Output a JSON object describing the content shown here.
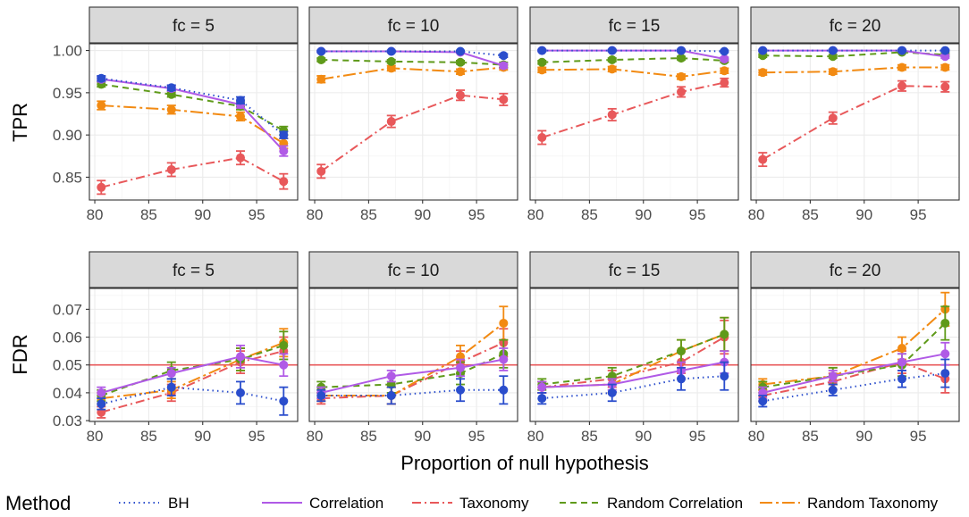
{
  "chart_data": {
    "type": "line",
    "x_axis_label": "Proportion of null hypothesis",
    "x_ticks": [
      80,
      85,
      90,
      95
    ],
    "xlim": [
      79.5,
      98.8
    ],
    "x": [
      80.6,
      87.1,
      93.5,
      97.5
    ],
    "facets": [
      "fc = 5",
      "fc = 10",
      "fc = 15",
      "fc = 20"
    ],
    "legend": {
      "title": "Method",
      "entries": [
        {
          "name": "BH",
          "color": "#2a4dcc",
          "dash": "1.5 4"
        },
        {
          "name": "Correlation",
          "color": "#b05ae6",
          "dash": ""
        },
        {
          "name": "Taxonomy",
          "color": "#e8585a",
          "dash": "10 4 2 4"
        },
        {
          "name": "Random Correlation",
          "color": "#5f9a1a",
          "dash": "7 5"
        },
        {
          "name": "Random Taxonomy",
          "color": "#f28a12",
          "dash": "14 4 3 4"
        }
      ]
    },
    "rows": [
      {
        "metric": "TPR",
        "ylim": [
          0.823,
          1.008
        ],
        "y_ticks": [
          0.85,
          0.9,
          0.95,
          1.0
        ],
        "y_tick_labels": [
          "0.85",
          "0.90",
          "0.95",
          "1.00"
        ],
        "reference_line": null,
        "panels": [
          {
            "facet": "fc = 5",
            "series": [
              {
                "name": "BH",
                "values": [
                  0.967,
                  0.956,
                  0.941,
                  0.9
                ],
                "err": [
                  0.003,
                  0.003,
                  0.004,
                  0.004
                ]
              },
              {
                "name": "Correlation",
                "values": [
                  0.966,
                  0.955,
                  0.936,
                  0.881
                ],
                "err": [
                  0.003,
                  0.003,
                  0.004,
                  0.006
                ]
              },
              {
                "name": "Taxonomy",
                "values": [
                  0.838,
                  0.859,
                  0.873,
                  0.845
                ],
                "err": [
                  0.008,
                  0.008,
                  0.008,
                  0.009
                ]
              },
              {
                "name": "Random Correlation",
                "values": [
                  0.96,
                  0.948,
                  0.934,
                  0.905
                ],
                "err": [
                  0.003,
                  0.003,
                  0.004,
                  0.005
                ]
              },
              {
                "name": "Random Taxonomy",
                "values": [
                  0.935,
                  0.93,
                  0.922,
                  0.89
                ],
                "err": [
                  0.005,
                  0.005,
                  0.005,
                  0.006
                ]
              }
            ]
          },
          {
            "facet": "fc = 10",
            "series": [
              {
                "name": "BH",
                "values": [
                  0.999,
                  0.999,
                  0.999,
                  0.994
                ],
                "err": [
                  0.001,
                  0.001,
                  0.001,
                  0.002
                ]
              },
              {
                "name": "Correlation",
                "values": [
                  0.999,
                  0.999,
                  0.998,
                  0.982
                ],
                "err": [
                  0.001,
                  0.001,
                  0.001,
                  0.003
                ]
              },
              {
                "name": "Taxonomy",
                "values": [
                  0.857,
                  0.916,
                  0.947,
                  0.942
                ],
                "err": [
                  0.008,
                  0.007,
                  0.006,
                  0.007
                ]
              },
              {
                "name": "Random Correlation",
                "values": [
                  0.989,
                  0.987,
                  0.986,
                  0.983
                ],
                "err": [
                  0.002,
                  0.002,
                  0.002,
                  0.003
                ]
              },
              {
                "name": "Random Taxonomy",
                "values": [
                  0.966,
                  0.979,
                  0.975,
                  0.98
                ],
                "err": [
                  0.004,
                  0.003,
                  0.003,
                  0.003
                ]
              }
            ]
          },
          {
            "facet": "fc = 15",
            "series": [
              {
                "name": "BH",
                "values": [
                  1.0,
                  1.0,
                  1.0,
                  0.999
                ],
                "err": [
                  0.001,
                  0.001,
                  0.001,
                  0.001
                ]
              },
              {
                "name": "Correlation",
                "values": [
                  1.0,
                  1.0,
                  1.0,
                  0.99
                ],
                "err": [
                  0.001,
                  0.001,
                  0.001,
                  0.002
                ]
              },
              {
                "name": "Taxonomy",
                "values": [
                  0.897,
                  0.924,
                  0.951,
                  0.962
                ],
                "err": [
                  0.008,
                  0.007,
                  0.006,
                  0.005
                ]
              },
              {
                "name": "Random Correlation",
                "values": [
                  0.986,
                  0.989,
                  0.991,
                  0.988
                ],
                "err": [
                  0.002,
                  0.002,
                  0.002,
                  0.002
                ]
              },
              {
                "name": "Random Taxonomy",
                "values": [
                  0.977,
                  0.978,
                  0.969,
                  0.976
                ],
                "err": [
                  0.003,
                  0.003,
                  0.003,
                  0.003
                ]
              }
            ]
          },
          {
            "facet": "fc = 20",
            "series": [
              {
                "name": "BH",
                "values": [
                  1.0,
                  1.0,
                  1.0,
                  1.0
                ],
                "err": [
                  0.001,
                  0.001,
                  0.001,
                  0.001
                ]
              },
              {
                "name": "Correlation",
                "values": [
                  1.0,
                  1.0,
                  1.0,
                  0.993
                ],
                "err": [
                  0.001,
                  0.001,
                  0.001,
                  0.002
                ]
              },
              {
                "name": "Taxonomy",
                "values": [
                  0.871,
                  0.92,
                  0.958,
                  0.957
                ],
                "err": [
                  0.008,
                  0.007,
                  0.006,
                  0.006
                ]
              },
              {
                "name": "Random Correlation",
                "values": [
                  0.994,
                  0.993,
                  0.998,
                  0.995
                ],
                "err": [
                  0.002,
                  0.002,
                  0.001,
                  0.002
                ]
              },
              {
                "name": "Random Taxonomy",
                "values": [
                  0.974,
                  0.975,
                  0.98,
                  0.98
                ],
                "err": [
                  0.003,
                  0.003,
                  0.003,
                  0.003
                ]
              }
            ]
          }
        ]
      },
      {
        "metric": "FDR",
        "ylim": [
          0.0297,
          0.0775
        ],
        "y_ticks": [
          0.03,
          0.04,
          0.05,
          0.06,
          0.07
        ],
        "y_tick_labels": [
          "0.03",
          "0.04",
          "0.05",
          "0.06",
          "0.07"
        ],
        "reference_line": 0.05,
        "panels": [
          {
            "facet": "fc = 5",
            "series": [
              {
                "name": "BH",
                "values": [
                  0.036,
                  0.042,
                  0.04,
                  0.037
                ],
                "err": [
                  0.002,
                  0.003,
                  0.004,
                  0.005
                ]
              },
              {
                "name": "Correlation",
                "values": [
                  0.04,
                  0.047,
                  0.053,
                  0.05
                ],
                "err": [
                  0.002,
                  0.002,
                  0.004,
                  0.004
                ]
              },
              {
                "name": "Taxonomy",
                "values": [
                  0.033,
                  0.04,
                  0.051,
                  0.055
                ],
                "err": [
                  0.002,
                  0.003,
                  0.004,
                  0.005
                ]
              },
              {
                "name": "Random Correlation",
                "values": [
                  0.039,
                  0.048,
                  0.052,
                  0.057
                ],
                "err": [
                  0.002,
                  0.003,
                  0.004,
                  0.005
                ]
              },
              {
                "name": "Random Taxonomy",
                "values": [
                  0.038,
                  0.041,
                  0.052,
                  0.058
                ],
                "err": [
                  0.002,
                  0.003,
                  0.004,
                  0.005
                ]
              }
            ]
          },
          {
            "facet": "fc = 10",
            "series": [
              {
                "name": "BH",
                "values": [
                  0.039,
                  0.039,
                  0.041,
                  0.041
                ],
                "err": [
                  0.002,
                  0.003,
                  0.004,
                  0.005
                ]
              },
              {
                "name": "Correlation",
                "values": [
                  0.04,
                  0.046,
                  0.049,
                  0.052
                ],
                "err": [
                  0.002,
                  0.002,
                  0.003,
                  0.004
                ]
              },
              {
                "name": "Taxonomy",
                "values": [
                  0.038,
                  0.039,
                  0.051,
                  0.058
                ],
                "err": [
                  0.002,
                  0.003,
                  0.004,
                  0.005
                ]
              },
              {
                "name": "Random Correlation",
                "values": [
                  0.042,
                  0.043,
                  0.047,
                  0.054
                ],
                "err": [
                  0.002,
                  0.003,
                  0.004,
                  0.005
                ]
              },
              {
                "name": "Random Taxonomy",
                "values": [
                  0.039,
                  0.039,
                  0.053,
                  0.065
                ],
                "err": [
                  0.002,
                  0.003,
                  0.004,
                  0.006
                ]
              }
            ]
          },
          {
            "facet": "fc = 15",
            "series": [
              {
                "name": "BH",
                "values": [
                  0.038,
                  0.04,
                  0.045,
                  0.046
                ],
                "err": [
                  0.002,
                  0.003,
                  0.004,
                  0.005
                ]
              },
              {
                "name": "Correlation",
                "values": [
                  0.042,
                  0.043,
                  0.048,
                  0.051
                ],
                "err": [
                  0.002,
                  0.002,
                  0.003,
                  0.004
                ]
              },
              {
                "name": "Taxonomy",
                "values": [
                  0.042,
                  0.045,
                  0.051,
                  0.06
                ],
                "err": [
                  0.002,
                  0.003,
                  0.004,
                  0.006
                ]
              },
              {
                "name": "Random Correlation",
                "values": [
                  0.043,
                  0.046,
                  0.055,
                  0.061
                ],
                "err": [
                  0.002,
                  0.003,
                  0.004,
                  0.006
                ]
              },
              {
                "name": "Random Taxonomy",
                "values": [
                  0.042,
                  0.043,
                  0.055,
                  0.061
                ],
                "err": [
                  0.002,
                  0.003,
                  0.004,
                  0.006
                ]
              }
            ]
          },
          {
            "facet": "fc = 20",
            "series": [
              {
                "name": "BH",
                "values": [
                  0.037,
                  0.041,
                  0.045,
                  0.047
                ],
                "err": [
                  0.002,
                  0.002,
                  0.003,
                  0.005
                ]
              },
              {
                "name": "Correlation",
                "values": [
                  0.04,
                  0.046,
                  0.051,
                  0.054
                ],
                "err": [
                  0.002,
                  0.002,
                  0.003,
                  0.004
                ]
              },
              {
                "name": "Taxonomy",
                "values": [
                  0.039,
                  0.044,
                  0.051,
                  0.045
                ],
                "err": [
                  0.002,
                  0.003,
                  0.004,
                  0.005
                ]
              },
              {
                "name": "Random Correlation",
                "values": [
                  0.042,
                  0.046,
                  0.05,
                  0.065
                ],
                "err": [
                  0.002,
                  0.003,
                  0.004,
                  0.006
                ]
              },
              {
                "name": "Random Taxonomy",
                "values": [
                  0.043,
                  0.046,
                  0.056,
                  0.07
                ],
                "err": [
                  0.002,
                  0.003,
                  0.004,
                  0.006
                ]
              }
            ]
          }
        ]
      }
    ]
  }
}
